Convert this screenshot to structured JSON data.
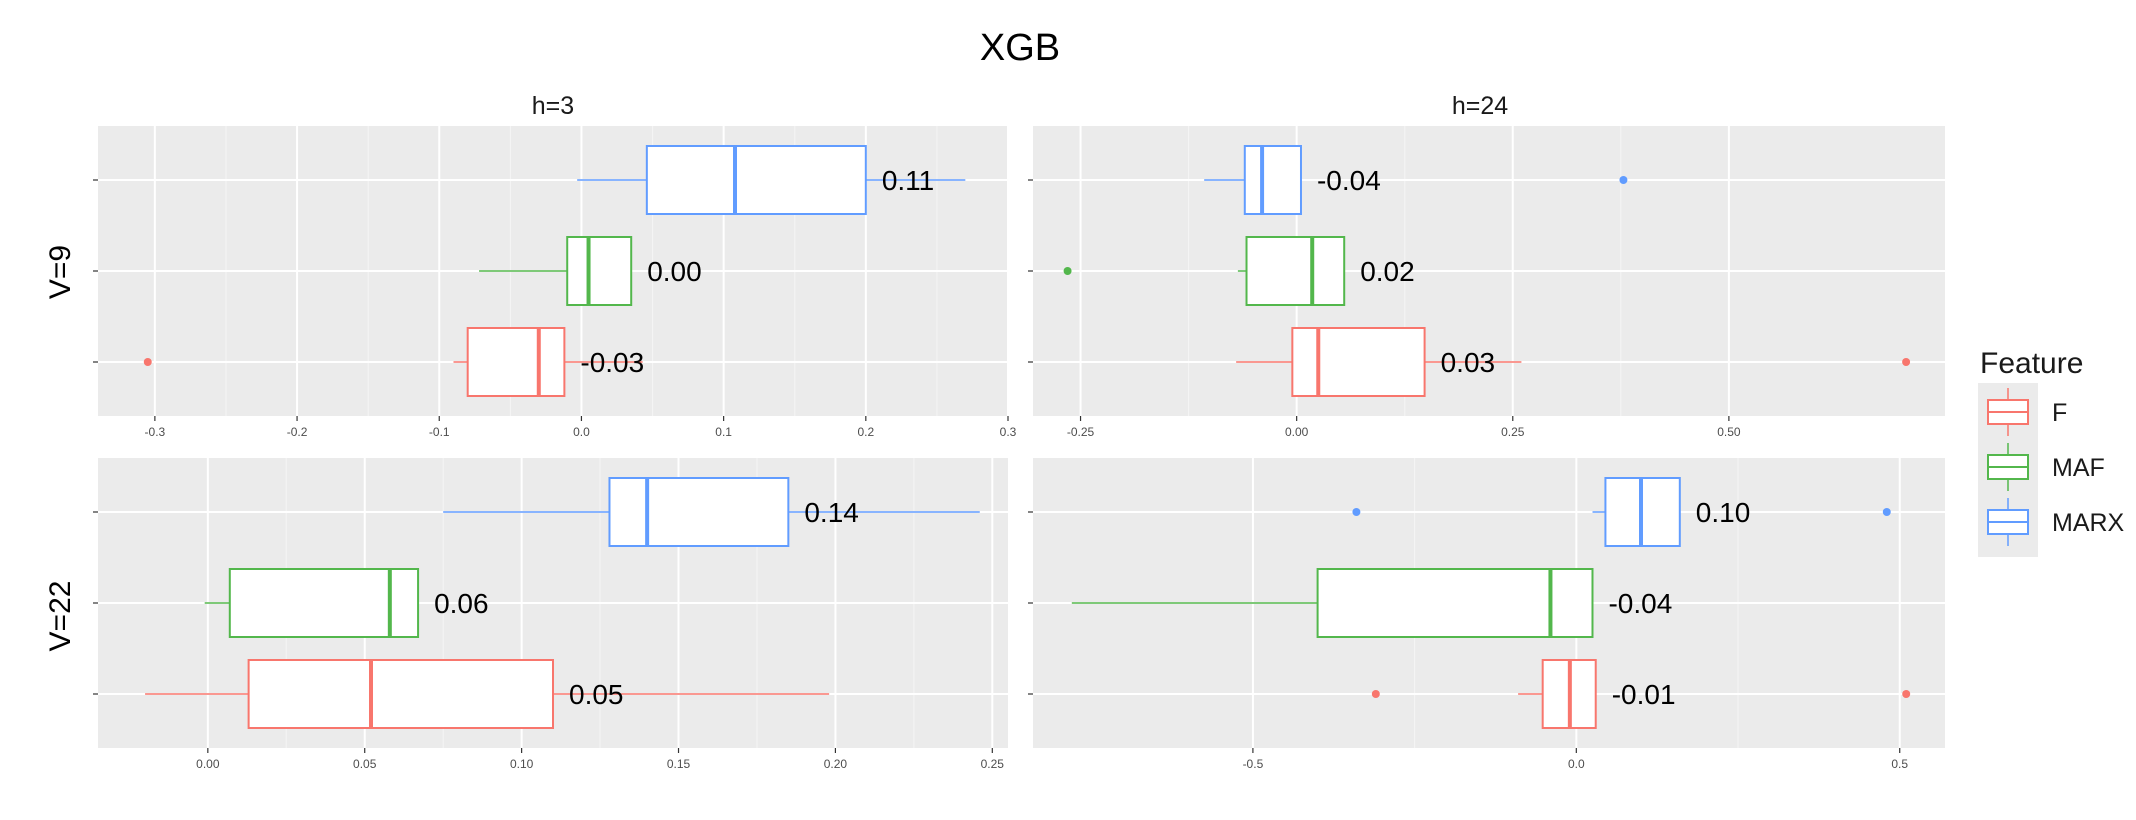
{
  "chart_data": {
    "type": "boxplot",
    "title": "XGB",
    "colors": {
      "F": "#F8766D",
      "MAF": "#53B74C",
      "MARX": "#619CFF"
    },
    "legend": {
      "title": "Feature",
      "position": "right",
      "entries": [
        "F",
        "MAF",
        "MARX"
      ]
    },
    "columns": [
      "h=3",
      "h=24"
    ],
    "rows": [
      "V=9",
      "V=22"
    ],
    "grid": true,
    "panels": [
      {
        "row": "V=9",
        "col": "h=3",
        "xlim": [
          -0.34,
          0.3
        ],
        "ticks": [
          -0.3,
          -0.2,
          -0.1,
          0.0,
          0.1,
          0.2,
          0.3
        ],
        "tick_labels": [
          "-0.3",
          "-0.2",
          "-0.1",
          "0.0",
          "0.1",
          "0.2",
          "0.3"
        ],
        "series": [
          {
            "name": "F",
            "whisker_low": -0.09,
            "q1": -0.08,
            "median": -0.03,
            "q3": -0.012,
            "whisker_high": 0.043,
            "outliers": [
              -0.305
            ],
            "label": "-0.03"
          },
          {
            "name": "MAF",
            "whisker_low": -0.072,
            "q1": -0.01,
            "median": 0.005,
            "q3": 0.035,
            "whisker_high": 0.035,
            "outliers": [],
            "label": "0.00"
          },
          {
            "name": "MARX",
            "whisker_low": -0.003,
            "q1": 0.046,
            "median": 0.108,
            "q3": 0.2,
            "whisker_high": 0.27,
            "outliers": [],
            "label": "0.11"
          }
        ]
      },
      {
        "row": "V=9",
        "col": "h=24",
        "xlim": [
          -0.305,
          0.75
        ],
        "ticks": [
          -0.25,
          0.0,
          0.25,
          0.5
        ],
        "tick_labels": [
          "-0.25",
          "0.00",
          "0.25",
          "0.50"
        ],
        "series": [
          {
            "name": "F",
            "whisker_low": -0.07,
            "q1": -0.005,
            "median": 0.025,
            "q3": 0.148,
            "whisker_high": 0.26,
            "outliers": [
              0.705
            ],
            "label": "0.03"
          },
          {
            "name": "MAF",
            "whisker_low": -0.068,
            "q1": -0.058,
            "median": 0.018,
            "q3": 0.055,
            "whisker_high": 0.055,
            "outliers": [
              -0.265
            ],
            "label": "0.02"
          },
          {
            "name": "MARX",
            "whisker_low": -0.107,
            "q1": -0.06,
            "median": -0.04,
            "q3": 0.005,
            "whisker_high": 0.005,
            "outliers": [
              0.378
            ],
            "label": "-0.04"
          }
        ]
      },
      {
        "row": "V=22",
        "col": "h=3",
        "xlim": [
          -0.035,
          0.255
        ],
        "ticks": [
          0.0,
          0.05,
          0.1,
          0.15,
          0.2,
          0.25
        ],
        "tick_labels": [
          "0.00",
          "0.05",
          "0.10",
          "0.15",
          "0.20",
          "0.25"
        ],
        "series": [
          {
            "name": "F",
            "whisker_low": -0.02,
            "q1": 0.013,
            "median": 0.052,
            "q3": 0.11,
            "whisker_high": 0.198,
            "outliers": [],
            "label": "0.05"
          },
          {
            "name": "MAF",
            "whisker_low": -0.001,
            "q1": 0.007,
            "median": 0.058,
            "q3": 0.067,
            "whisker_high": 0.067,
            "outliers": [],
            "label": "0.06"
          },
          {
            "name": "MARX",
            "whisker_low": 0.075,
            "q1": 0.128,
            "median": 0.14,
            "q3": 0.185,
            "whisker_high": 0.246,
            "outliers": [],
            "label": "0.14"
          }
        ]
      },
      {
        "row": "V=22",
        "col": "h=24",
        "xlim": [
          -0.84,
          0.57
        ],
        "ticks": [
          -0.5,
          0.0,
          0.5
        ],
        "tick_labels": [
          "-0.5",
          "0.0",
          "0.5"
        ],
        "series": [
          {
            "name": "F",
            "whisker_low": -0.09,
            "q1": -0.052,
            "median": -0.01,
            "q3": 0.03,
            "whisker_high": 0.03,
            "outliers": [
              -0.31,
              0.51
            ],
            "label": "-0.01"
          },
          {
            "name": "MAF",
            "whisker_low": -0.78,
            "q1": -0.4,
            "median": -0.04,
            "q3": 0.025,
            "whisker_high": 0.025,
            "outliers": [],
            "label": "-0.04"
          },
          {
            "name": "MARX",
            "whisker_low": 0.025,
            "q1": 0.045,
            "median": 0.1,
            "q3": 0.16,
            "whisker_high": 0.16,
            "outliers": [
              -0.34,
              0.48
            ],
            "label": "0.10"
          }
        ]
      }
    ]
  }
}
